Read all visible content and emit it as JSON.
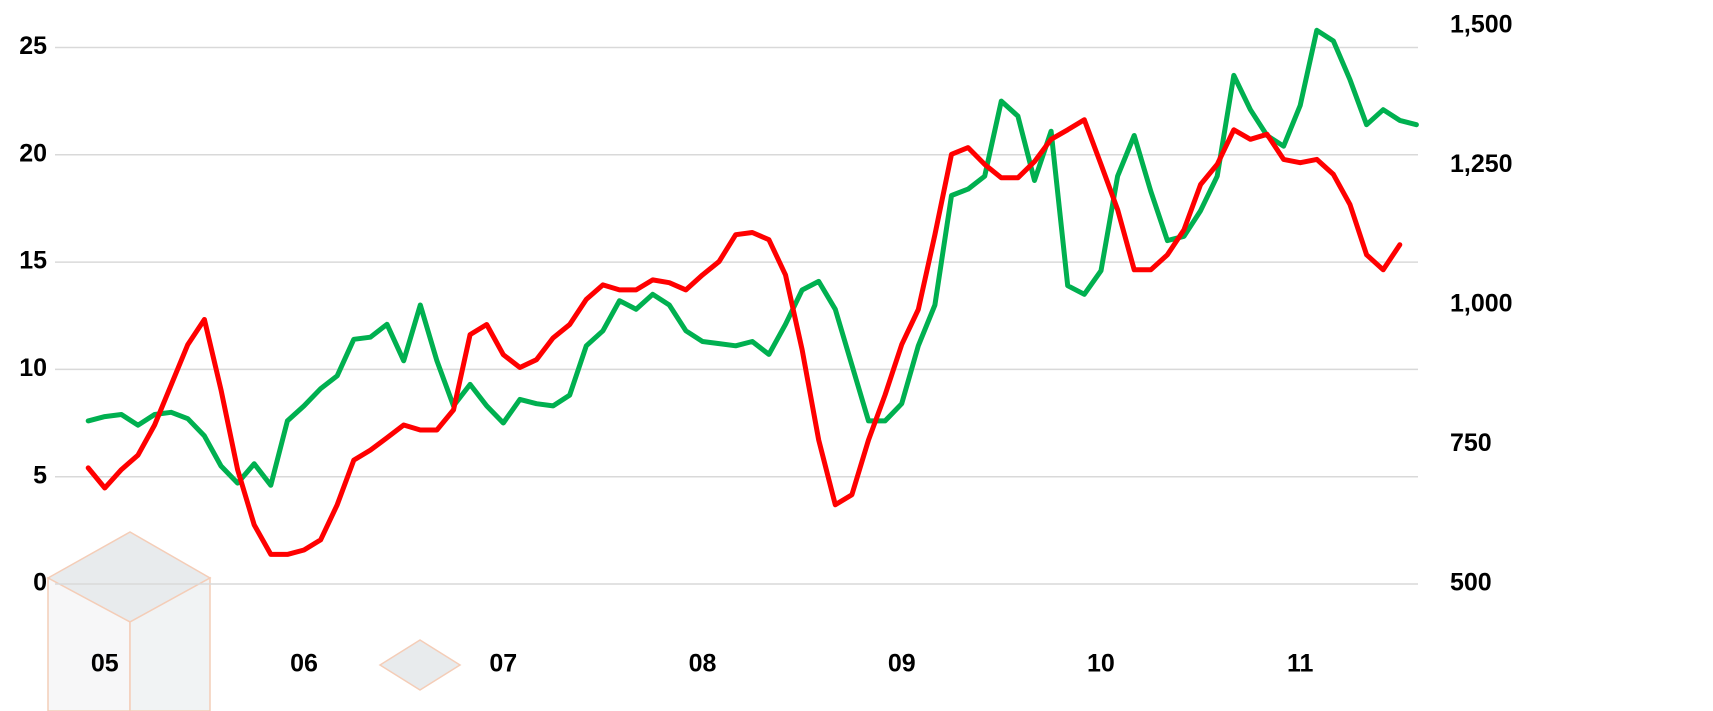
{
  "chart_data": {
    "type": "line",
    "x": [
      0,
      1,
      2,
      3,
      4,
      5,
      6,
      7,
      8,
      9,
      10,
      11,
      12,
      13,
      14,
      15,
      16,
      17,
      18,
      19,
      20,
      21,
      22,
      23,
      24,
      25,
      26,
      27,
      28,
      29,
      30,
      31,
      32,
      33,
      34,
      35,
      36,
      37,
      38,
      39,
      40,
      41,
      42,
      43,
      44,
      45,
      46,
      47,
      48,
      49,
      50,
      51,
      52,
      53,
      54,
      55,
      56,
      57,
      58,
      59,
      60,
      61,
      62,
      63,
      64,
      65,
      66,
      67,
      68,
      69,
      70,
      71,
      72,
      73,
      74,
      75,
      76,
      77,
      78,
      79,
      80
    ],
    "xlim": [
      -2,
      81
    ],
    "xticks": [
      {
        "value": 1,
        "label": "05"
      },
      {
        "value": 13,
        "label": "06"
      },
      {
        "value": 25,
        "label": "07"
      },
      {
        "value": 37,
        "label": "08"
      },
      {
        "value": 49,
        "label": "09"
      },
      {
        "value": 61,
        "label": "10"
      },
      {
        "value": 73,
        "label": "11"
      }
    ],
    "ylim": [
      0,
      26
    ],
    "yticks": [
      0,
      5,
      10,
      15,
      20,
      25
    ],
    "y2lim": [
      500,
      1500
    ],
    "y2ticks": [
      500,
      750,
      {
        "value": 1000,
        "label": "1,000"
      },
      {
        "value": 1250,
        "label": "1,250"
      },
      {
        "value": 1500,
        "label": "1,500"
      }
    ],
    "grid": true,
    "series": [
      {
        "color": "#00b050",
        "values": [
          7.6,
          7.8,
          7.9,
          7.4,
          7.9,
          8.0,
          7.7,
          6.9,
          5.5,
          4.7,
          5.6,
          4.6,
          7.6,
          8.3,
          9.1,
          9.7,
          11.4,
          11.5,
          12.1,
          10.4,
          13.0,
          10.4,
          8.3,
          9.3,
          8.3,
          7.5,
          8.6,
          8.4,
          8.3,
          8.8,
          11.1,
          11.8,
          13.2,
          12.8,
          13.5,
          13.0,
          11.8,
          11.3,
          11.2,
          11.1,
          11.3,
          10.7,
          12.1,
          13.7,
          14.1,
          12.8,
          10.2,
          7.6,
          7.6,
          8.4,
          11.1,
          13.0,
          18.1,
          18.4,
          19.0,
          22.5,
          21.8,
          18.8,
          21.1,
          13.9,
          13.5,
          14.6,
          19.0,
          20.9,
          18.3,
          16.0,
          16.2,
          17.4,
          19.0,
          23.7,
          22.1,
          20.9,
          20.4,
          22.3,
          25.8,
          25.3,
          23.5,
          21.4,
          22.1,
          21.6,
          21.4
        ]
      },
      {
        "color": "#ff0000",
        "axis": "y2",
        "values": [
          708,
          672,
          705,
          731,
          785,
          857,
          929,
          974,
          848,
          705,
          606,
          553,
          553,
          561,
          579,
          642,
          722,
          740,
          762,
          785,
          776,
          776,
          812,
          947,
          965,
          911,
          888,
          902,
          941,
          965,
          1010,
          1036,
          1027,
          1027,
          1045,
          1040,
          1027,
          1054,
          1078,
          1126,
          1130,
          1117,
          1054,
          920,
          758,
          642,
          660,
          758,
          839,
          929,
          992,
          1126,
          1270,
          1282,
          1252,
          1228,
          1228,
          1257,
          1297,
          1314,
          1332,
          1252,
          1171,
          1063,
          1063,
          1090,
          1135,
          1216,
          1252,
          1314,
          1297,
          1306,
          1261,
          1255,
          1261,
          1234,
          1180,
          1090,
          1063,
          1108,
          null
        ]
      }
    ]
  }
}
